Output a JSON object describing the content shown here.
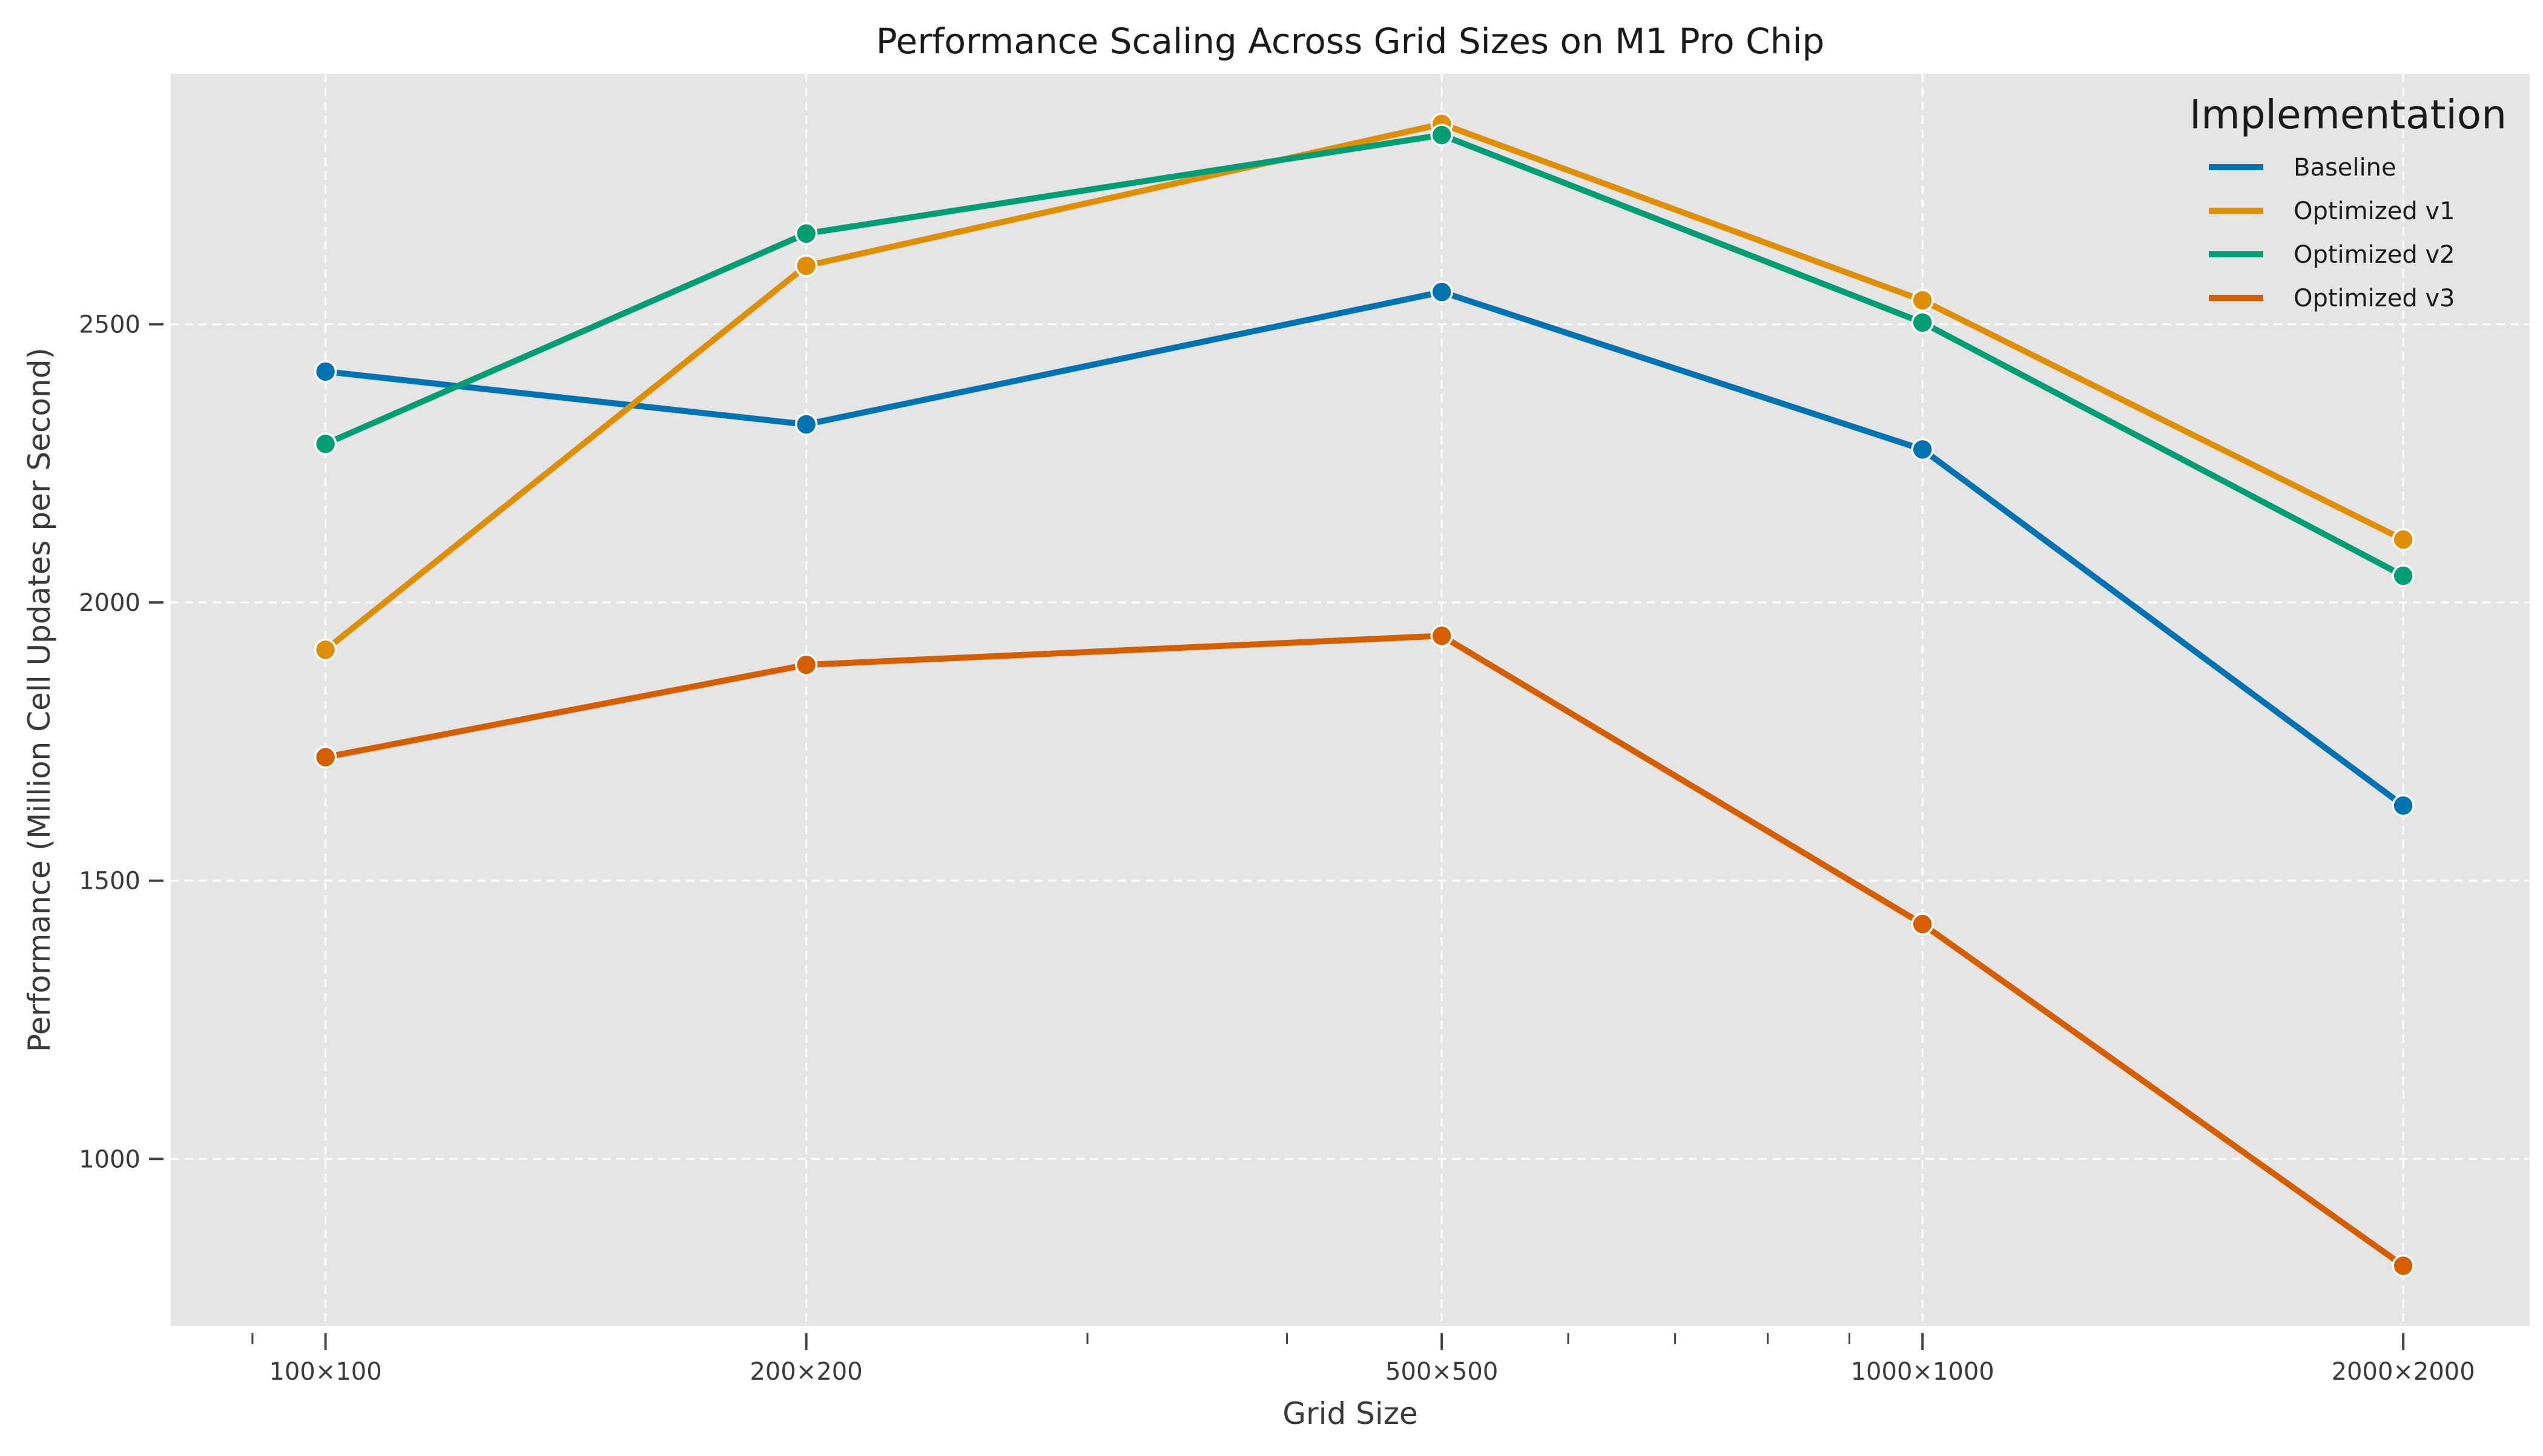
{
  "chart_data": {
    "type": "line",
    "title": "Performance Scaling Across Grid Sizes on M1 Pro Chip",
    "xlabel": "Grid Size",
    "ylabel": "Performance (Million Cell Updates per Second)",
    "x_scale": "log",
    "x_values": [
      100,
      200,
      500,
      1000,
      2000
    ],
    "categories": [
      "100×100",
      "200×200",
      "500×500",
      "1000×1000",
      "2000×2000"
    ],
    "xlim": [
      80,
      2400
    ],
    "ylim": [
      700,
      2950
    ],
    "yticks": [
      1000,
      1500,
      2000,
      2500
    ],
    "grid": true,
    "legend": {
      "title": "Implementation",
      "placement": "top-right"
    },
    "series": [
      {
        "name": "Baseline",
        "color": "#0173b2",
        "values": [
          2415,
          2320,
          2558,
          2275,
          1635
        ]
      },
      {
        "name": "Optimized v1",
        "color": "#de8f05",
        "values": [
          1915,
          2605,
          2860,
          2543,
          2113
        ]
      },
      {
        "name": "Optimized v2",
        "color": "#029e73",
        "values": [
          2285,
          2663,
          2840,
          2503,
          2048
        ]
      },
      {
        "name": "Optimized v3",
        "color": "#d55e00",
        "values": [
          1722,
          1888,
          1940,
          1422,
          808
        ]
      }
    ]
  }
}
